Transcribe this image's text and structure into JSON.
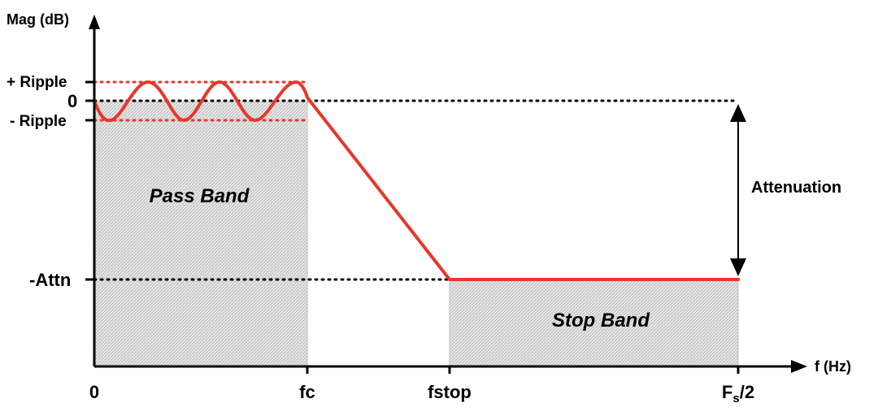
{
  "axes": {
    "y_label": "Mag (dB)",
    "x_label": "f (Hz)"
  },
  "y_ticks": {
    "plus_ripple": "+ Ripple",
    "zero": "0",
    "minus_ripple": "- Ripple",
    "attn": "-Attn"
  },
  "x_ticks": {
    "zero": "0",
    "fc": "fc",
    "fstop": "fstop",
    "fs_main": "F",
    "fs_sub": "s",
    "fs_tail": "/2"
  },
  "regions": {
    "pass_band": "Pass Band",
    "stop_band": "Stop Band"
  },
  "annotation": {
    "attenuation": "Attenuation"
  },
  "colors": {
    "response": "#e8372a",
    "ripple_guides": "#e8372a",
    "axes": "#000000",
    "band_fill": "#d9d9d9"
  }
}
